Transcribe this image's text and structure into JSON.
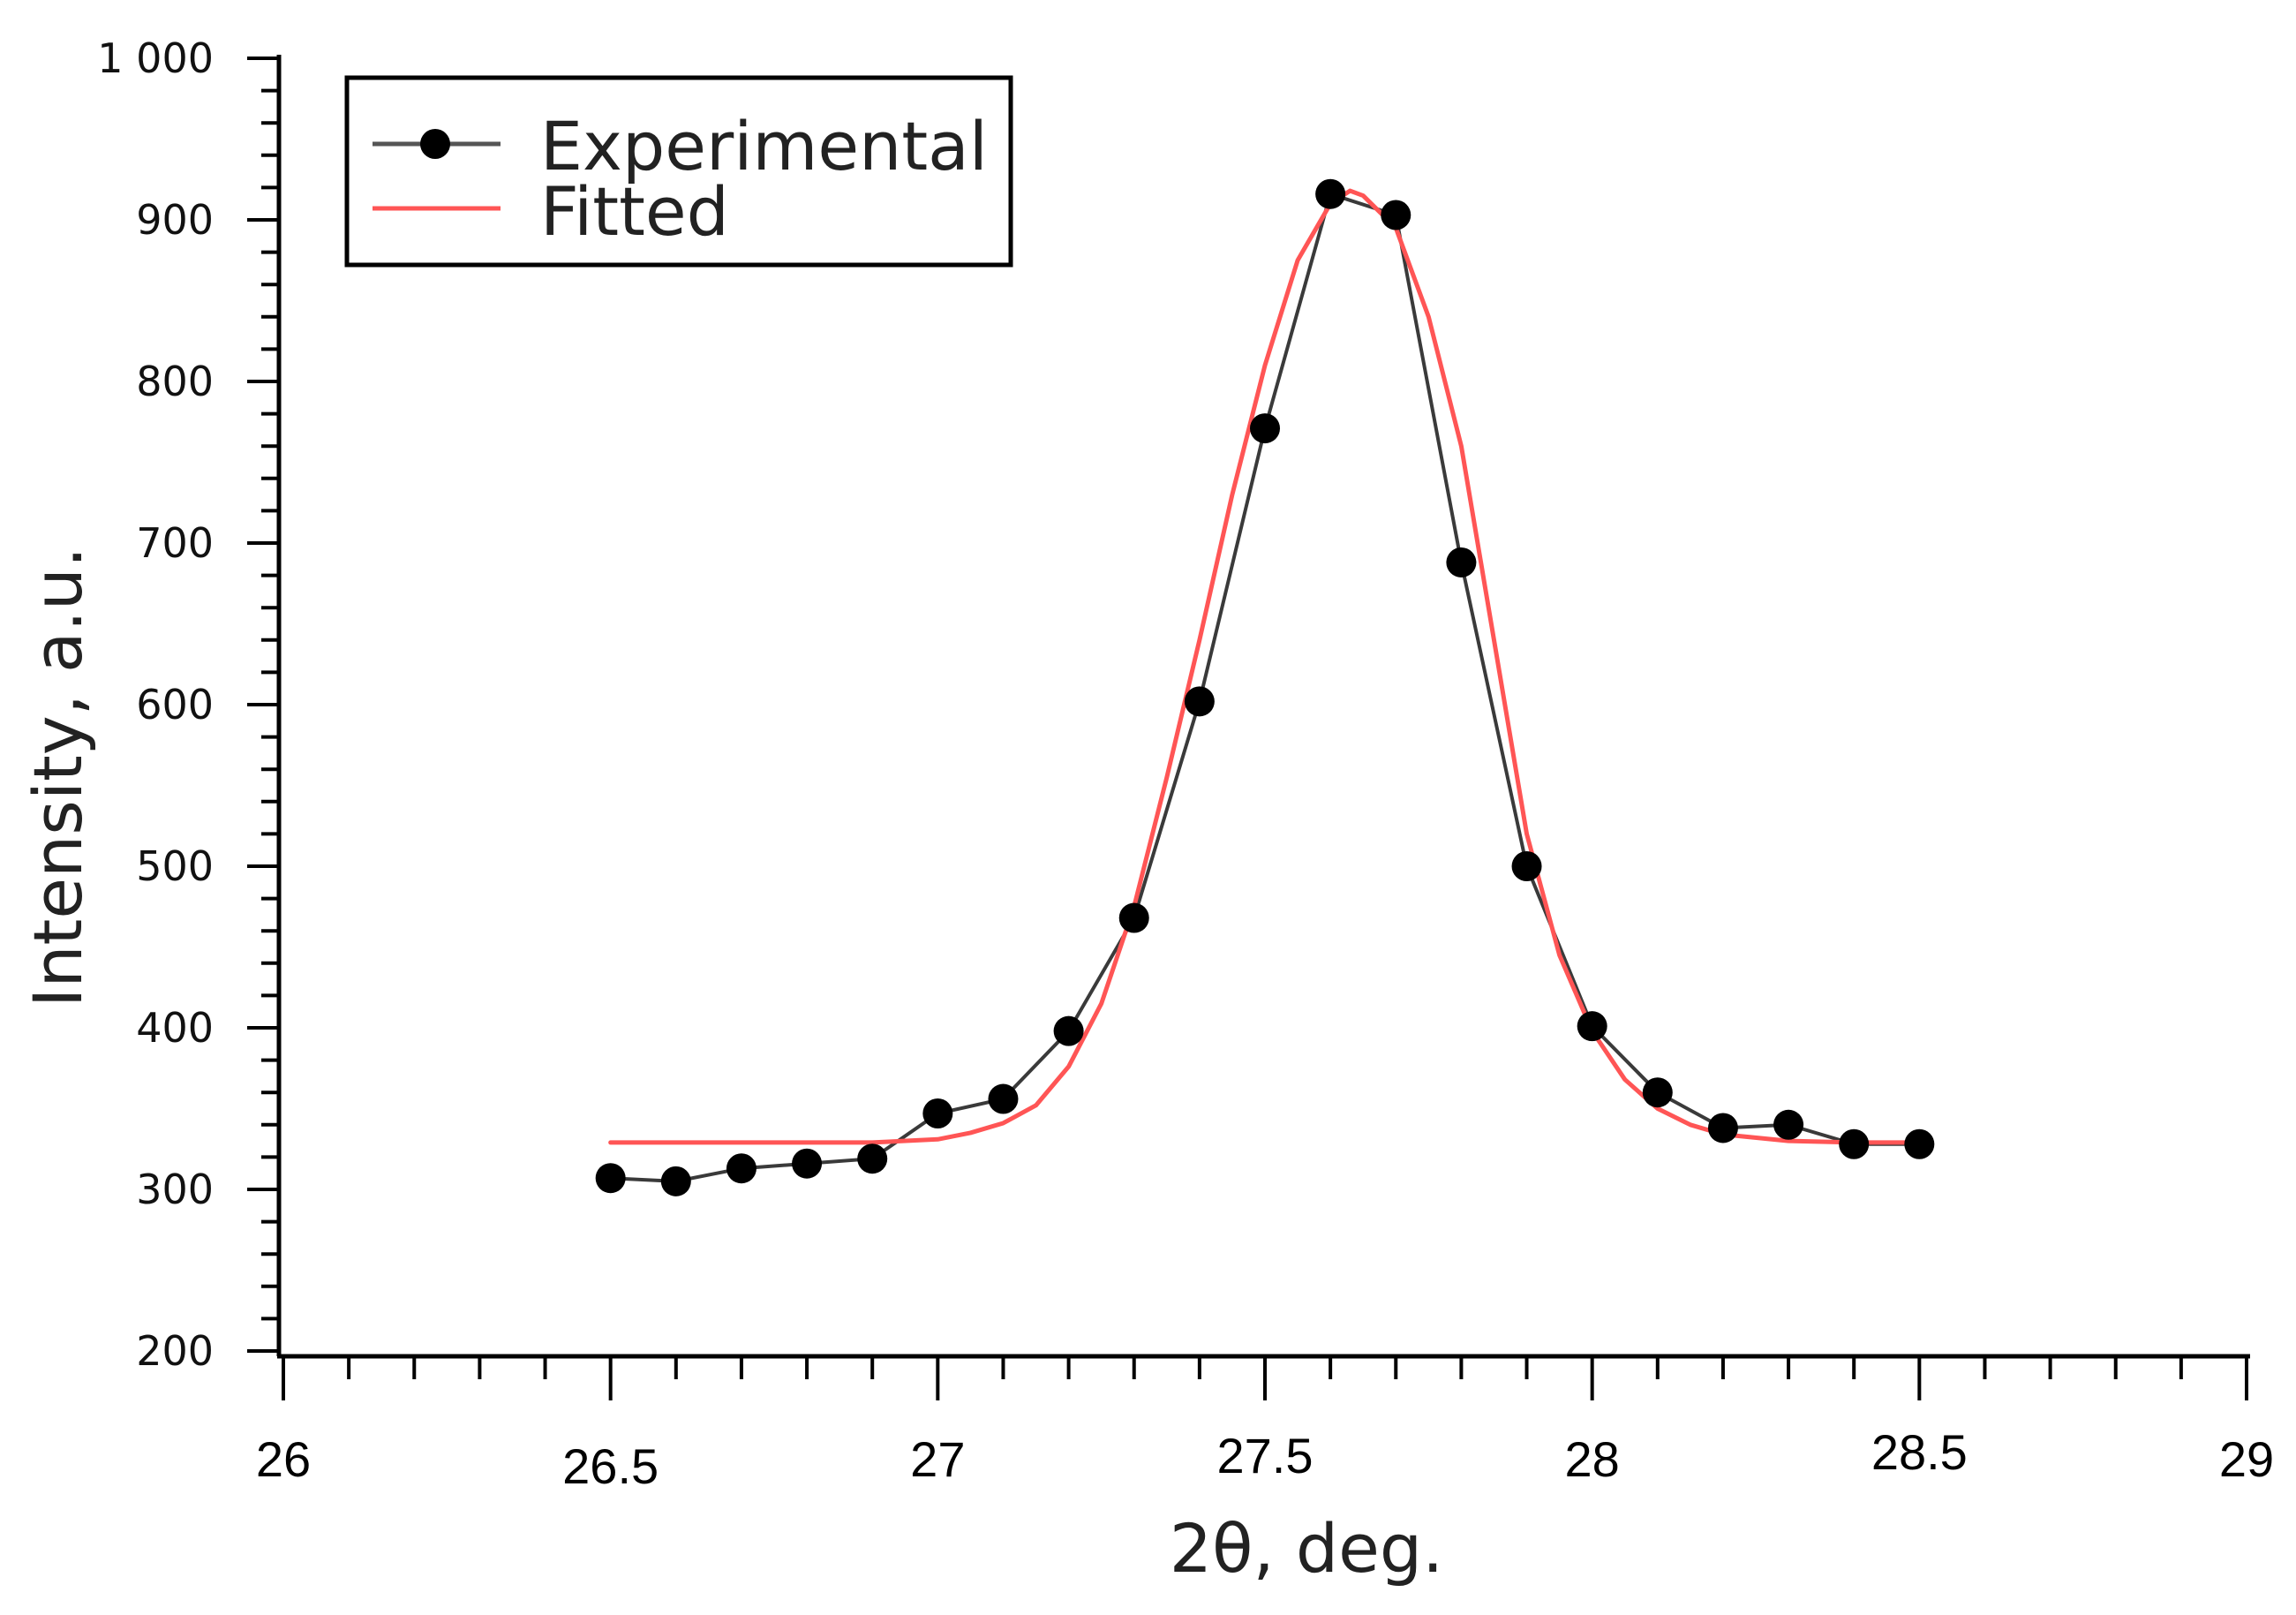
{
  "chart_data": {
    "type": "line",
    "title": "",
    "xlabel": "2θ, deg.",
    "ylabel": "Intensity, a.u.",
    "xlim": [
      26,
      29
    ],
    "ylim": [
      200,
      1000
    ],
    "x_ticks": [
      26,
      26.5,
      27,
      27.5,
      28,
      28.5,
      29
    ],
    "x_tick_labels": [
      "26",
      "26.5",
      "27",
      "27.5",
      "28",
      "28.5",
      "29"
    ],
    "x_minor_step": 0.1,
    "y_ticks": [
      200,
      300,
      400,
      500,
      600,
      700,
      800,
      900,
      1000
    ],
    "y_tick_labels": [
      "200",
      "300",
      "400",
      "500",
      "600",
      "700",
      "800",
      "900",
      "1 000"
    ],
    "y_minor_step": 20,
    "grid": false,
    "legend_position": "top-left",
    "series": [
      {
        "name": "Experimental",
        "color": "#000000",
        "marker": "circle",
        "x": [
          26.5,
          26.6,
          26.7,
          26.8,
          26.9,
          27.0,
          27.1,
          27.2,
          27.3,
          27.4,
          27.5,
          27.6,
          27.7,
          27.8,
          27.9,
          28.0,
          28.1,
          28.2,
          28.3,
          28.4,
          28.5
        ],
        "y": [
          307,
          305,
          313,
          316,
          319,
          347,
          356,
          398,
          468,
          602,
          771,
          916,
          903,
          688,
          500,
          401,
          360,
          338,
          340,
          328,
          328
        ]
      },
      {
        "name": "Fitted",
        "color": "#ff5555",
        "marker": "none",
        "x": [
          26.5,
          26.6,
          26.7,
          26.8,
          26.9,
          27.0,
          27.05,
          27.1,
          27.15,
          27.2,
          27.25,
          27.3,
          27.35,
          27.4,
          27.45,
          27.5,
          27.55,
          27.6,
          27.63,
          27.65,
          27.7,
          27.75,
          27.8,
          27.85,
          27.9,
          27.95,
          28.0,
          28.05,
          28.1,
          28.15,
          28.2,
          28.3,
          28.4,
          28.5
        ],
        "y": [
          329,
          329,
          329,
          329,
          329,
          331,
          335,
          341,
          352,
          376,
          415,
          475,
          555,
          640,
          730,
          810,
          875,
          910,
          918,
          915,
          895,
          840,
          760,
          640,
          520,
          445,
          398,
          368,
          350,
          340,
          334,
          330,
          329,
          329
        ]
      }
    ]
  }
}
